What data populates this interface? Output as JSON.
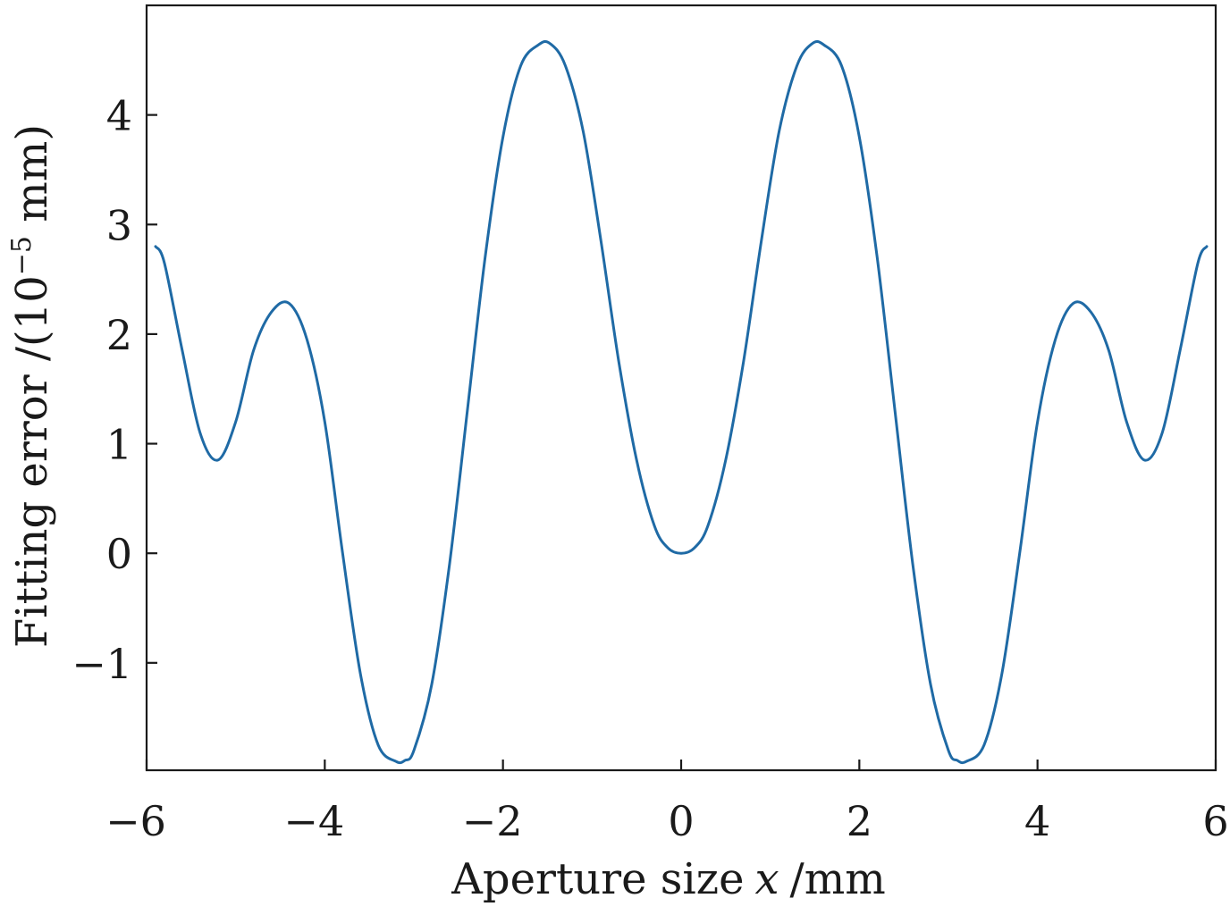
{
  "chart_data": {
    "type": "line",
    "title": "",
    "xlabel": {
      "text": "Aperture size",
      "var": "x",
      "unit": "/mm"
    },
    "ylabel": {
      "prefix": "Fitting error /(10",
      "sup": "−5",
      "suffix": " mm)"
    },
    "xlim": [
      -6,
      6
    ],
    "ylim": [
      -1.98,
      5.0
    ],
    "xticks": [
      -6,
      -4,
      -2,
      0,
      2,
      4,
      6
    ],
    "xtick_labels": [
      "−6",
      "−4",
      "−2",
      "0",
      "2",
      "4",
      "6"
    ],
    "yticks": [
      -1,
      0,
      1,
      2,
      3,
      4
    ],
    "ytick_labels": [
      "−1",
      "0",
      "1",
      "2",
      "3",
      "4"
    ],
    "grid": false,
    "legend": "none",
    "color": "#1f6aa5",
    "series": [
      {
        "x": [
          -5.9,
          -5.8,
          -5.6,
          -5.4,
          -5.2,
          -5.0,
          -4.8,
          -4.6,
          -4.4,
          -4.2,
          -4.0,
          -3.8,
          -3.6,
          -3.4,
          -3.2,
          -3.1,
          -3.0,
          -2.8,
          -2.6,
          -2.4,
          -2.2,
          -2.0,
          -1.8,
          -1.6,
          -1.47,
          -1.3,
          -1.1,
          -0.9,
          -0.7,
          -0.5,
          -0.3,
          -0.15,
          0.0,
          0.15,
          0.3,
          0.5,
          0.7,
          0.9,
          1.1,
          1.3,
          1.47,
          1.6,
          1.8,
          2.0,
          2.2,
          2.4,
          2.6,
          2.8,
          3.0,
          3.1,
          3.2,
          3.4,
          3.6,
          3.8,
          4.0,
          4.2,
          4.4,
          4.6,
          4.8,
          5.0,
          5.2,
          5.4,
          5.6,
          5.8,
          5.9
        ],
        "y": [
          2.8,
          2.65,
          1.85,
          1.1,
          0.85,
          1.2,
          1.85,
          2.2,
          2.28,
          1.95,
          1.2,
          0.0,
          -1.1,
          -1.75,
          -1.9,
          -1.89,
          -1.8,
          -1.2,
          -0.1,
          1.3,
          2.7,
          3.8,
          4.45,
          4.64,
          4.65,
          4.45,
          3.85,
          2.85,
          1.75,
          0.85,
          0.25,
          0.05,
          0.0,
          0.05,
          0.25,
          0.85,
          1.75,
          2.85,
          3.85,
          4.45,
          4.65,
          4.64,
          4.45,
          3.8,
          2.7,
          1.3,
          -0.1,
          -1.2,
          -1.8,
          -1.89,
          -1.9,
          -1.75,
          -1.1,
          0.0,
          1.2,
          1.95,
          2.28,
          2.2,
          1.85,
          1.2,
          0.85,
          1.1,
          1.85,
          2.65,
          2.8
        ]
      }
    ]
  }
}
